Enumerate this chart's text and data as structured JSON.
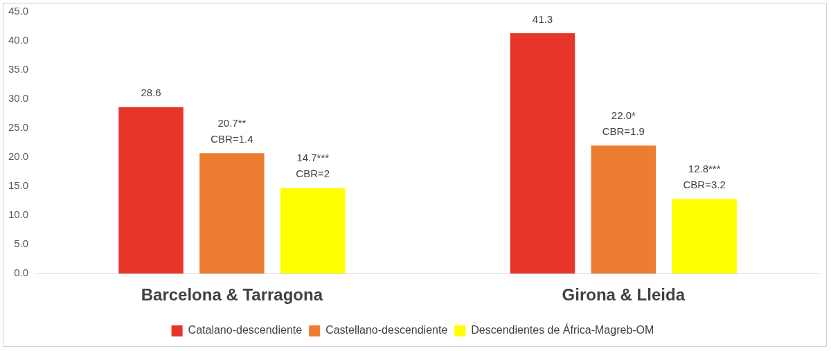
{
  "chart_data": {
    "type": "bar",
    "categories": [
      "Barcelona & Tarragona",
      "Girona & Lleida"
    ],
    "series": [
      {
        "name": "Catalano-descendiente",
        "color": "#e8352a",
        "values": [
          28.6,
          41.3
        ],
        "value_labels": [
          "28.6",
          "41.3"
        ]
      },
      {
        "name": "Castellano-descendiente",
        "color": "#ed7d31",
        "values": [
          20.7,
          22.0
        ],
        "value_labels": [
          "20.7**\nCBR=1.4",
          "22.0*\nCBR=1.9"
        ]
      },
      {
        "name": "Descendientes de África-Magreb-OM",
        "color": "#ffff00",
        "values": [
          14.7,
          12.8
        ],
        "value_labels": [
          "14.7***\nCBR=2",
          "12.8***\nCBR=3.2"
        ]
      }
    ],
    "ylim": [
      0,
      45
    ],
    "yticks": [
      {
        "value": 0,
        "label": "0.0"
      },
      {
        "value": 5,
        "label": "5.0"
      },
      {
        "value": 10,
        "label": "10.0"
      },
      {
        "value": 15,
        "label": "15.0"
      },
      {
        "value": 20,
        "label": "20.0"
      },
      {
        "value": 25,
        "label": "25.0"
      },
      {
        "value": 30,
        "label": "30.0"
      },
      {
        "value": 35,
        "label": "35.0"
      },
      {
        "value": 40,
        "label": "40.0"
      },
      {
        "value": 45,
        "label": "45.0"
      }
    ],
    "grid": false,
    "legend": "bottom"
  }
}
